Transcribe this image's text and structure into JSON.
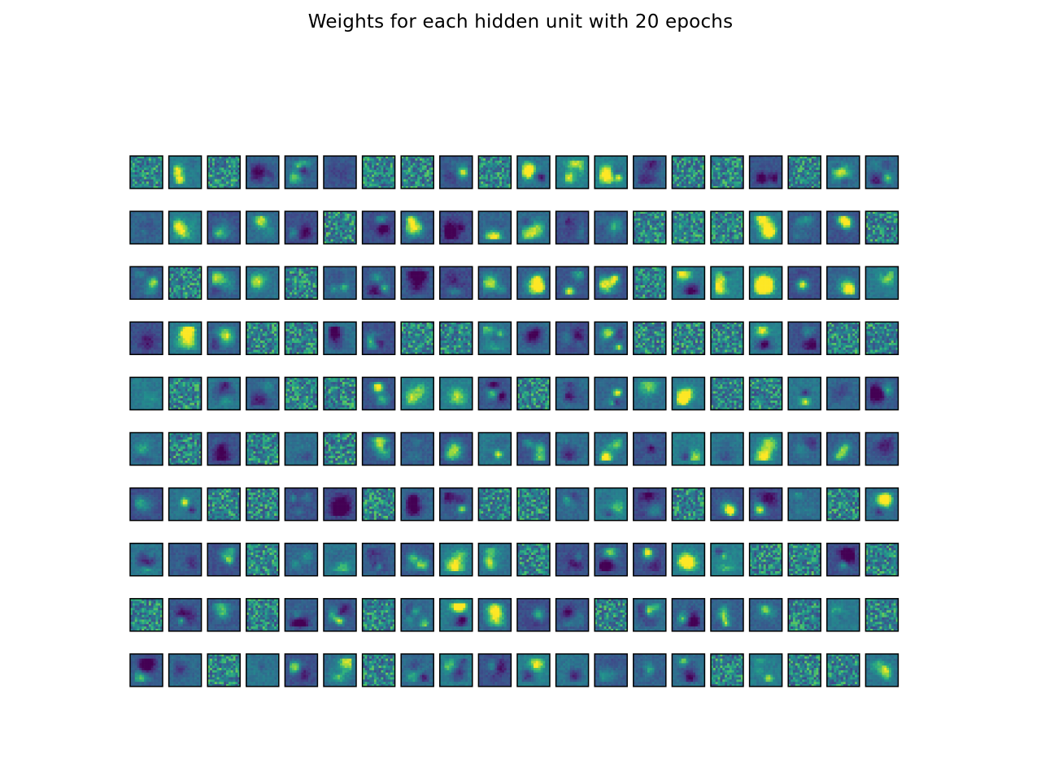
{
  "title": "Weights for each hidden unit with 20 epochs",
  "chart_data": {
    "type": "heatmap",
    "title": "Weights for each hidden unit with 20 epochs",
    "grid": {
      "rows": 10,
      "cols": 20
    },
    "total_units": 200,
    "axes_visible": false,
    "colormap": "viridis",
    "tile_style": [
      "noise",
      "digit",
      "noise",
      "digit",
      "digit",
      "digit",
      "noise",
      "noise",
      "digit",
      "noise",
      "digit",
      "digit",
      "digit",
      "digit",
      "noise",
      "noise",
      "digit",
      "noise",
      "digit",
      "digit",
      "digit",
      "digit",
      "digit",
      "digit",
      "digit",
      "noise",
      "digit",
      "digit",
      "digit",
      "digit",
      "digit",
      "digit",
      "digit",
      "noise",
      "noise",
      "noise",
      "digit",
      "digit",
      "digit",
      "noise",
      "digit",
      "noise",
      "digit",
      "digit",
      "noise",
      "digit",
      "digit",
      "digit",
      "digit",
      "digit",
      "digit",
      "digit",
      "digit",
      "noise",
      "digit",
      "digit",
      "digit",
      "digit",
      "digit",
      "digit",
      "digit",
      "digit",
      "digit",
      "noise",
      "noise",
      "digit",
      "digit",
      "noise",
      "noise",
      "digit",
      "digit",
      "digit",
      "digit",
      "noise",
      "noise",
      "noise",
      "digit",
      "digit",
      "noise",
      "noise",
      "digit",
      "noise",
      "digit",
      "digit",
      "noise",
      "noise",
      "digit",
      "digit",
      "digit",
      "digit",
      "noise",
      "digit",
      "digit",
      "digit",
      "digit",
      "noise",
      "noise",
      "digit",
      "digit",
      "digit",
      "digit",
      "noise",
      "digit",
      "noise",
      "digit",
      "noise",
      "digit",
      "digit",
      "digit",
      "digit",
      "digit",
      "digit",
      "digit",
      "digit",
      "digit",
      "digit",
      "digit",
      "digit",
      "digit",
      "digit",
      "digit",
      "digit",
      "noise",
      "noise",
      "digit",
      "digit",
      "noise",
      "digit",
      "digit",
      "noise",
      "noise",
      "digit",
      "digit",
      "digit",
      "noise",
      "digit",
      "digit",
      "digit",
      "noise",
      "digit",
      "digit",
      "digit",
      "digit",
      "noise",
      "digit",
      "digit",
      "digit",
      "digit",
      "digit",
      "digit",
      "noise",
      "digit",
      "digit",
      "digit",
      "digit",
      "digit",
      "noise",
      "noise",
      "digit",
      "noise",
      "noise",
      "digit",
      "digit",
      "noise",
      "digit",
      "digit",
      "noise",
      "digit",
      "digit",
      "digit",
      "digit",
      "digit",
      "noise",
      "digit",
      "digit",
      "digit",
      "digit",
      "noise",
      "digit",
      "noise",
      "digit",
      "digit",
      "noise",
      "digit",
      "digit",
      "digit",
      "noise",
      "digit",
      "digit",
      "digit",
      "digit",
      "digit",
      "digit",
      "digit",
      "digit",
      "noise",
      "digit",
      "noise",
      "noise",
      "digit"
    ]
  }
}
